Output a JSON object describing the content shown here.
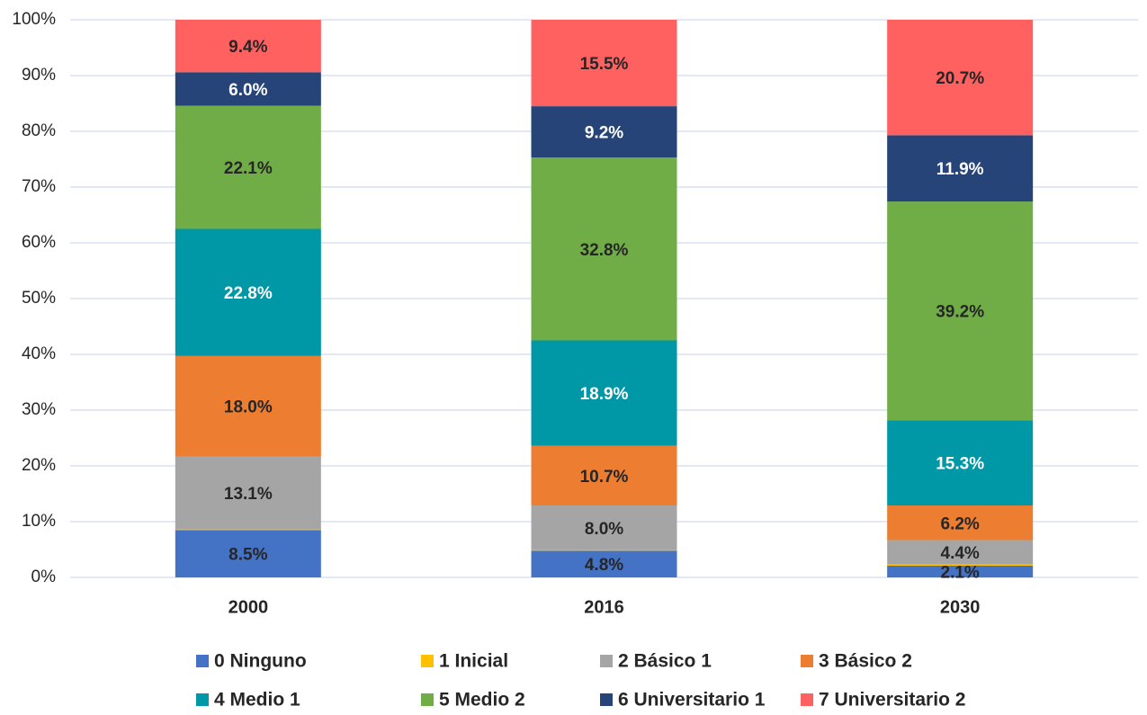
{
  "chart_data": {
    "type": "stacked_bar",
    "categories": [
      "2000",
      "2016",
      "2030"
    ],
    "series": [
      {
        "name": "0 Ninguno",
        "color": "#4472c4",
        "label_color": "#262626",
        "values": [
          8.5,
          4.8,
          2.1
        ],
        "value_labels": [
          "8.5%",
          "4.8%",
          "2.1%"
        ]
      },
      {
        "name": "1 Inicial",
        "color": "#ffc000",
        "values": [
          0.1,
          0.1,
          0.2
        ]
      },
      {
        "name": "2 Básico 1",
        "color": "#a5a5a5",
        "label_color": "#262626",
        "values": [
          13.1,
          8.0,
          4.4
        ],
        "value_labels": [
          "13.1%",
          "8.0%",
          "4.4%"
        ]
      },
      {
        "name": "3 Básico 2",
        "color": "#ed7d31",
        "label_color": "#262626",
        "values": [
          18.0,
          10.7,
          6.2
        ],
        "value_labels": [
          "18.0%",
          "10.7%",
          "6.2%"
        ]
      },
      {
        "name": "4 Medio 1",
        "color": "#0097a7",
        "label_color": "#ffffff",
        "values": [
          22.8,
          18.9,
          15.3
        ],
        "value_labels": [
          "22.8%",
          "18.9%",
          "15.3%"
        ]
      },
      {
        "name": "5 Medio 2",
        "color": "#70ad47",
        "label_color": "#262626",
        "values": [
          22.1,
          32.8,
          39.2
        ],
        "value_labels": [
          "22.1%",
          "32.8%",
          "39.2%"
        ]
      },
      {
        "name": "6 Universitario 1",
        "color": "#264478",
        "label_color": "#ffffff",
        "values": [
          6.0,
          9.2,
          11.9
        ],
        "value_labels": [
          "6.0%",
          "9.2%",
          "11.9%"
        ]
      },
      {
        "name": "7 Universitario 2",
        "color": "#ff6161",
        "label_color": "#262626",
        "values": [
          9.4,
          15.5,
          20.7
        ],
        "value_labels": [
          "9.4%",
          "15.5%",
          "20.7%"
        ]
      }
    ],
    "ylim": [
      0,
      100
    ],
    "yticks": [
      {
        "value": 0,
        "label": "0%"
      },
      {
        "value": 10,
        "label": "10%"
      },
      {
        "value": 20,
        "label": "20%"
      },
      {
        "value": 30,
        "label": "30%"
      },
      {
        "value": 40,
        "label": "40%"
      },
      {
        "value": 50,
        "label": "50%"
      },
      {
        "value": 60,
        "label": "60%"
      },
      {
        "value": 70,
        "label": "70%"
      },
      {
        "value": 80,
        "label": "80%"
      },
      {
        "value": 90,
        "label": "90%"
      },
      {
        "value": 100,
        "label": "100%"
      }
    ],
    "grid": true,
    "legend": "bottom"
  }
}
